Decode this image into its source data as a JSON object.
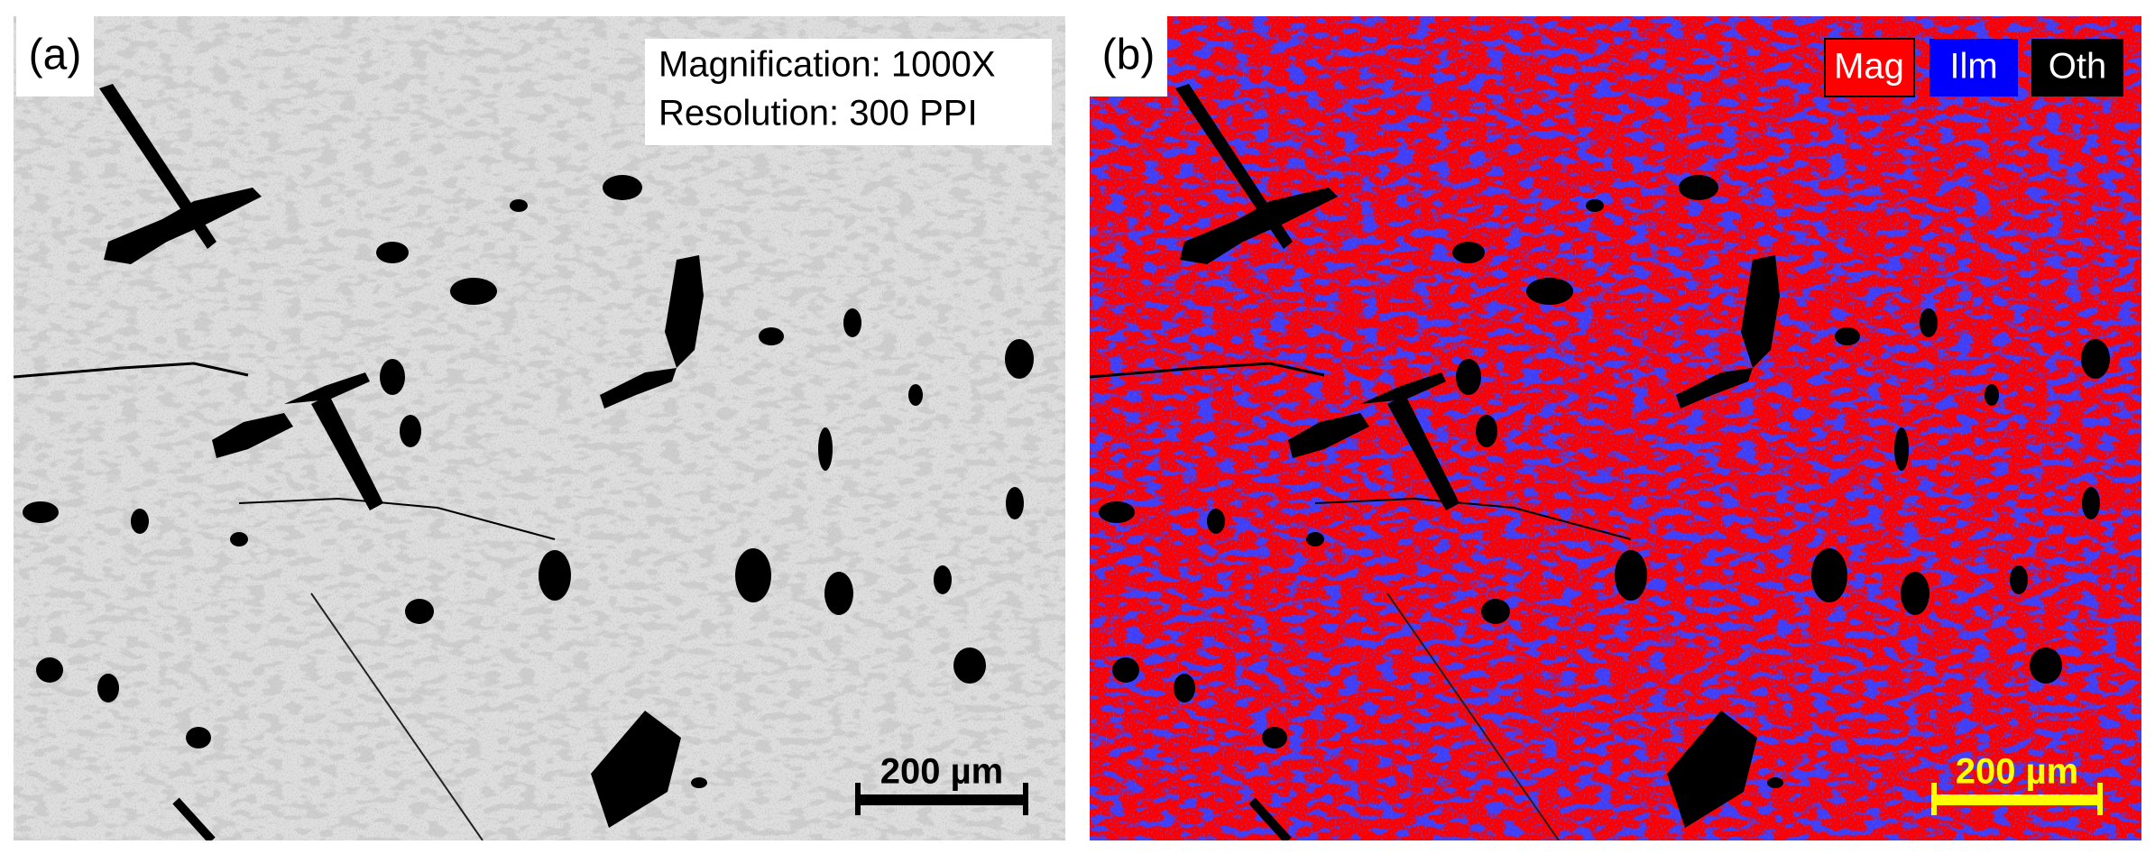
{
  "panels": [
    {
      "label": "(a)",
      "annotation": [
        "Magnification: 1000X",
        "Resolution: 300 PPI"
      ],
      "scale_bar": "200 µm"
    },
    {
      "label": "(b)",
      "legend": [
        "Mag",
        "Ilm",
        "Oth"
      ],
      "scale_bar": "200 µm"
    }
  ]
}
